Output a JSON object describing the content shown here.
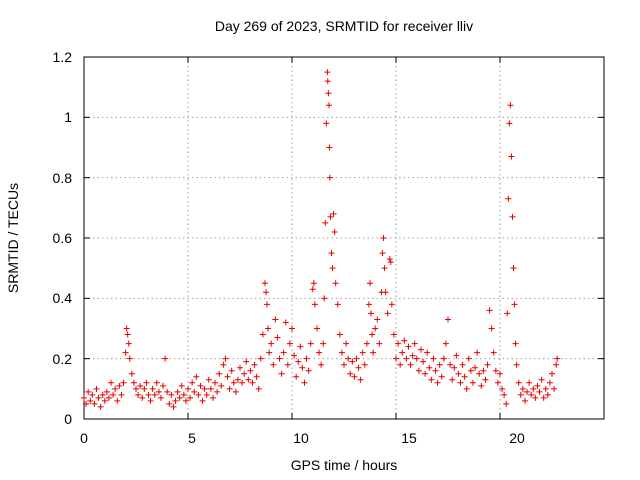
{
  "chart_data": {
    "type": "scatter",
    "title": "Day 269 of 2023, SRMTID for receiver lliv",
    "xlabel": "GPS time / hours",
    "ylabel": "SRMTID / TECUs",
    "xlim": [
      0,
      25
    ],
    "ylim": [
      0,
      1.2
    ],
    "xticks": [
      0,
      5,
      10,
      15,
      20
    ],
    "yticks": [
      0,
      0.2,
      0.4,
      0.6,
      0.8,
      1,
      1.2
    ],
    "xtick_labels": [
      "0",
      "5",
      "10",
      "15",
      "20"
    ],
    "ytick_labels": [
      "0",
      "0.2",
      "0.4",
      "0.6",
      "0.8",
      "1",
      "1.2"
    ],
    "grid": true,
    "marker": "+",
    "color": "#e60000",
    "series": [
      {
        "name": "SRMTID",
        "points": [
          [
            0.0,
            0.07
          ],
          [
            0.1,
            0.05
          ],
          [
            0.2,
            0.09
          ],
          [
            0.3,
            0.06
          ],
          [
            0.4,
            0.08
          ],
          [
            0.5,
            0.05
          ],
          [
            0.6,
            0.1
          ],
          [
            0.7,
            0.07
          ],
          [
            0.8,
            0.04
          ],
          [
            0.9,
            0.08
          ],
          [
            1.0,
            0.06
          ],
          [
            1.1,
            0.09
          ],
          [
            1.2,
            0.07
          ],
          [
            1.3,
            0.12
          ],
          [
            1.4,
            0.08
          ],
          [
            1.5,
            0.1
          ],
          [
            1.6,
            0.06
          ],
          [
            1.7,
            0.11
          ],
          [
            1.8,
            0.08
          ],
          [
            1.9,
            0.12
          ],
          [
            2.0,
            0.22
          ],
          [
            2.05,
            0.3
          ],
          [
            2.1,
            0.28
          ],
          [
            2.15,
            0.25
          ],
          [
            2.2,
            0.2
          ],
          [
            2.3,
            0.15
          ],
          [
            2.4,
            0.12
          ],
          [
            2.5,
            0.1
          ],
          [
            2.6,
            0.08
          ],
          [
            2.7,
            0.11
          ],
          [
            2.8,
            0.07
          ],
          [
            2.9,
            0.1
          ],
          [
            3.0,
            0.12
          ],
          [
            3.1,
            0.08
          ],
          [
            3.2,
            0.06
          ],
          [
            3.3,
            0.1
          ],
          [
            3.4,
            0.08
          ],
          [
            3.5,
            0.12
          ],
          [
            3.6,
            0.09
          ],
          [
            3.7,
            0.07
          ],
          [
            3.8,
            0.11
          ],
          [
            3.9,
            0.2
          ],
          [
            4.0,
            0.09
          ],
          [
            4.1,
            0.05
          ],
          [
            4.2,
            0.08
          ],
          [
            4.3,
            0.04
          ],
          [
            4.4,
            0.06
          ],
          [
            4.5,
            0.09
          ],
          [
            4.6,
            0.07
          ],
          [
            4.7,
            0.11
          ],
          [
            4.8,
            0.08
          ],
          [
            4.9,
            0.06
          ],
          [
            5.0,
            0.1
          ],
          [
            5.1,
            0.07
          ],
          [
            5.2,
            0.12
          ],
          [
            5.3,
            0.09
          ],
          [
            5.4,
            0.14
          ],
          [
            5.5,
            0.08
          ],
          [
            5.6,
            0.11
          ],
          [
            5.7,
            0.06
          ],
          [
            5.8,
            0.1
          ],
          [
            5.9,
            0.08
          ],
          [
            6.0,
            0.13
          ],
          [
            6.1,
            0.1
          ],
          [
            6.2,
            0.07
          ],
          [
            6.3,
            0.12
          ],
          [
            6.4,
            0.09
          ],
          [
            6.5,
            0.15
          ],
          [
            6.6,
            0.11
          ],
          [
            6.7,
            0.18
          ],
          [
            6.8,
            0.2
          ],
          [
            6.9,
            0.14
          ],
          [
            7.0,
            0.1
          ],
          [
            7.1,
            0.16
          ],
          [
            7.2,
            0.12
          ],
          [
            7.3,
            0.09
          ],
          [
            7.4,
            0.13
          ],
          [
            7.5,
            0.17
          ],
          [
            7.6,
            0.12
          ],
          [
            7.7,
            0.15
          ],
          [
            7.8,
            0.19
          ],
          [
            7.9,
            0.13
          ],
          [
            8.0,
            0.16
          ],
          [
            8.1,
            0.12
          ],
          [
            8.2,
            0.18
          ],
          [
            8.3,
            0.14
          ],
          [
            8.4,
            0.1
          ],
          [
            8.5,
            0.2
          ],
          [
            8.6,
            0.28
          ],
          [
            8.7,
            0.45
          ],
          [
            8.75,
            0.42
          ],
          [
            8.8,
            0.38
          ],
          [
            8.85,
            0.3
          ],
          [
            8.9,
            0.22
          ],
          [
            9.0,
            0.25
          ],
          [
            9.1,
            0.18
          ],
          [
            9.2,
            0.33
          ],
          [
            9.3,
            0.27
          ],
          [
            9.4,
            0.2
          ],
          [
            9.5,
            0.15
          ],
          [
            9.6,
            0.22
          ],
          [
            9.7,
            0.32
          ],
          [
            9.8,
            0.18
          ],
          [
            9.9,
            0.25
          ],
          [
            10.0,
            0.3
          ],
          [
            10.1,
            0.21
          ],
          [
            10.2,
            0.14
          ],
          [
            10.3,
            0.19
          ],
          [
            10.4,
            0.24
          ],
          [
            10.5,
            0.17
          ],
          [
            10.6,
            0.12
          ],
          [
            10.7,
            0.2
          ],
          [
            10.8,
            0.16
          ],
          [
            10.9,
            0.25
          ],
          [
            11.0,
            0.43
          ],
          [
            11.05,
            0.45
          ],
          [
            11.1,
            0.38
          ],
          [
            11.2,
            0.3
          ],
          [
            11.3,
            0.22
          ],
          [
            11.4,
            0.18
          ],
          [
            11.5,
            0.25
          ],
          [
            11.55,
            0.4
          ],
          [
            11.6,
            0.65
          ],
          [
            11.65,
            0.98
          ],
          [
            11.7,
            1.15
          ],
          [
            11.72,
            1.12
          ],
          [
            11.75,
            1.08
          ],
          [
            11.78,
            1.04
          ],
          [
            11.8,
            0.9
          ],
          [
            11.82,
            0.8
          ],
          [
            11.85,
            0.67
          ],
          [
            11.9,
            0.55
          ],
          [
            11.95,
            0.5
          ],
          [
            12.0,
            0.68
          ],
          [
            12.05,
            0.62
          ],
          [
            12.1,
            0.45
          ],
          [
            12.2,
            0.38
          ],
          [
            12.3,
            0.28
          ],
          [
            12.4,
            0.22
          ],
          [
            12.5,
            0.18
          ],
          [
            12.6,
            0.25
          ],
          [
            12.7,
            0.2
          ],
          [
            12.8,
            0.15
          ],
          [
            12.9,
            0.19
          ],
          [
            13.0,
            0.14
          ],
          [
            13.1,
            0.2
          ],
          [
            13.2,
            0.17
          ],
          [
            13.3,
            0.13
          ],
          [
            13.4,
            0.22
          ],
          [
            13.5,
            0.18
          ],
          [
            13.6,
            0.25
          ],
          [
            13.7,
            0.38
          ],
          [
            13.75,
            0.45
          ],
          [
            13.8,
            0.35
          ],
          [
            13.85,
            0.28
          ],
          [
            13.9,
            0.22
          ],
          [
            14.0,
            0.3
          ],
          [
            14.1,
            0.33
          ],
          [
            14.2,
            0.25
          ],
          [
            14.3,
            0.42
          ],
          [
            14.35,
            0.55
          ],
          [
            14.4,
            0.6
          ],
          [
            14.45,
            0.5
          ],
          [
            14.5,
            0.42
          ],
          [
            14.6,
            0.35
          ],
          [
            14.7,
            0.53
          ],
          [
            14.75,
            0.52
          ],
          [
            14.8,
            0.38
          ],
          [
            14.9,
            0.28
          ],
          [
            15.0,
            0.2
          ],
          [
            15.1,
            0.25
          ],
          [
            15.2,
            0.18
          ],
          [
            15.3,
            0.22
          ],
          [
            15.4,
            0.26
          ],
          [
            15.5,
            0.2
          ],
          [
            15.6,
            0.24
          ],
          [
            15.7,
            0.18
          ],
          [
            15.8,
            0.21
          ],
          [
            15.9,
            0.25
          ],
          [
            16.0,
            0.2
          ],
          [
            16.1,
            0.16
          ],
          [
            16.2,
            0.23
          ],
          [
            16.3,
            0.19
          ],
          [
            16.4,
            0.15
          ],
          [
            16.5,
            0.22
          ],
          [
            16.6,
            0.17
          ],
          [
            16.7,
            0.13
          ],
          [
            16.8,
            0.2
          ],
          [
            16.9,
            0.16
          ],
          [
            17.0,
            0.12
          ],
          [
            17.1,
            0.18
          ],
          [
            17.2,
            0.14
          ],
          [
            17.3,
            0.2
          ],
          [
            17.4,
            0.25
          ],
          [
            17.5,
            0.33
          ],
          [
            17.6,
            0.18
          ],
          [
            17.7,
            0.13
          ],
          [
            17.8,
            0.17
          ],
          [
            17.9,
            0.21
          ],
          [
            18.0,
            0.15
          ],
          [
            18.1,
            0.12
          ],
          [
            18.2,
            0.18
          ],
          [
            18.3,
            0.14
          ],
          [
            18.4,
            0.1
          ],
          [
            18.5,
            0.2
          ],
          [
            18.6,
            0.16
          ],
          [
            18.7,
            0.12
          ],
          [
            18.8,
            0.17
          ],
          [
            18.9,
            0.22
          ],
          [
            19.0,
            0.15
          ],
          [
            19.1,
            0.11
          ],
          [
            19.2,
            0.16
          ],
          [
            19.3,
            0.13
          ],
          [
            19.4,
            0.18
          ],
          [
            19.5,
            0.36
          ],
          [
            19.6,
            0.3
          ],
          [
            19.7,
            0.22
          ],
          [
            19.8,
            0.16
          ],
          [
            19.9,
            0.12
          ],
          [
            20.0,
            0.15
          ],
          [
            20.1,
            0.1
          ],
          [
            20.2,
            0.08
          ],
          [
            20.3,
            0.05
          ],
          [
            20.35,
            0.35
          ],
          [
            20.4,
            0.73
          ],
          [
            20.45,
            0.98
          ],
          [
            20.5,
            1.04
          ],
          [
            20.55,
            0.87
          ],
          [
            20.6,
            0.67
          ],
          [
            20.65,
            0.5
          ],
          [
            20.7,
            0.38
          ],
          [
            20.75,
            0.25
          ],
          [
            20.8,
            0.18
          ],
          [
            20.9,
            0.12
          ],
          [
            21.0,
            0.08
          ],
          [
            21.1,
            0.1
          ],
          [
            21.2,
            0.06
          ],
          [
            21.3,
            0.09
          ],
          [
            21.4,
            0.12
          ],
          [
            21.5,
            0.08
          ],
          [
            21.6,
            0.1
          ],
          [
            21.7,
            0.07
          ],
          [
            21.8,
            0.11
          ],
          [
            21.9,
            0.09
          ],
          [
            22.0,
            0.13
          ],
          [
            22.1,
            0.07
          ],
          [
            22.2,
            0.1
          ],
          [
            22.3,
            0.08
          ],
          [
            22.4,
            0.12
          ],
          [
            22.5,
            0.15
          ],
          [
            22.6,
            0.1
          ],
          [
            22.7,
            0.18
          ],
          [
            22.75,
            0.2
          ]
        ]
      }
    ]
  }
}
